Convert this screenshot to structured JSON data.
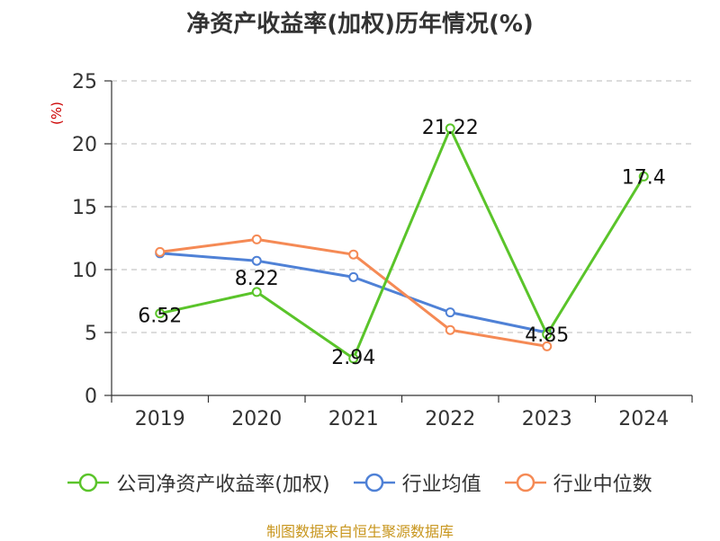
{
  "chart_data": {
    "type": "line",
    "title": "净资产收益率(加权)历年情况(%)",
    "ylabel": "(%)",
    "xlabel": "",
    "categories": [
      "2019",
      "2020",
      "2021",
      "2022",
      "2023",
      "2024"
    ],
    "ylim": [
      0,
      25
    ],
    "yticks": [
      0,
      5,
      10,
      15,
      20,
      25
    ],
    "grid": true,
    "legend_position": "bottom",
    "series": [
      {
        "name": "公司净资产收益率(加权)",
        "color": "#5ac42a",
        "values": [
          6.52,
          8.22,
          2.94,
          21.22,
          4.85,
          17.4
        ],
        "labels": [
          "6.52",
          "8.22",
          "2.94",
          "21.22",
          "4.85",
          "17.4"
        ]
      },
      {
        "name": "行业均值",
        "color": "#4f81d6",
        "values": [
          11.3,
          10.7,
          9.4,
          6.6,
          5.0,
          null
        ]
      },
      {
        "name": "行业中位数",
        "color": "#f58a55",
        "values": [
          11.4,
          12.4,
          11.2,
          5.2,
          3.9,
          null
        ]
      }
    ]
  },
  "footer": {
    "source": "制图数据来自恒生聚源数据库"
  }
}
